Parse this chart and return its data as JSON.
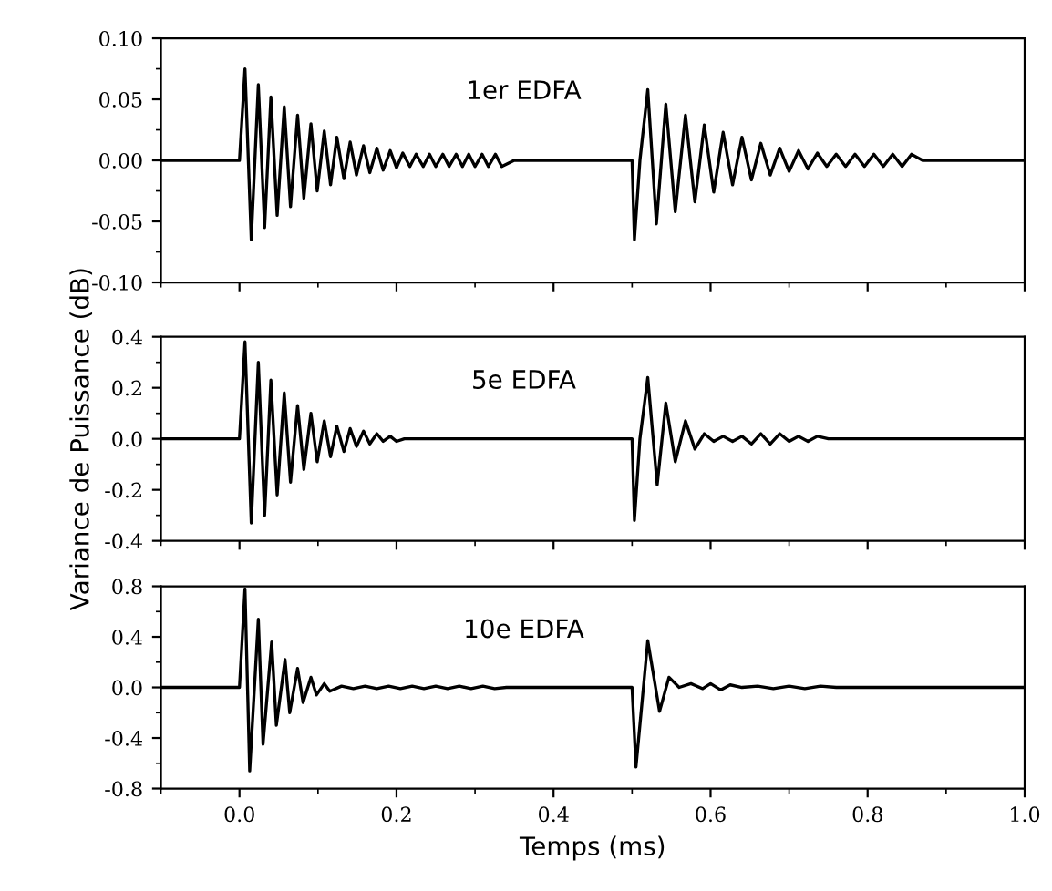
{
  "chart_data": [
    {
      "type": "line",
      "xlim": [
        -0.1,
        1.0
      ],
      "ylim": [
        -0.1,
        0.1
      ],
      "xticks": [
        {
          "value": 0,
          "label": null
        },
        {
          "value": 0.2,
          "label": null
        },
        {
          "value": 0.4,
          "label": null
        },
        {
          "value": 0.6,
          "label": null
        },
        {
          "value": 0.8,
          "label": null
        },
        {
          "value": 1,
          "label": null
        }
      ],
      "yticks": [
        {
          "value": 0.1,
          "label": "0.10"
        },
        {
          "value": 0.05,
          "label": "0.05"
        },
        {
          "value": 0,
          "label": "0.00"
        },
        {
          "value": -0.05,
          "label": "-0.05"
        },
        {
          "value": -0.1,
          "label": "-0.10"
        }
      ],
      "tick_labels": "y",
      "annotations": [
        "1er EDFA"
      ],
      "series": [
        {
          "color": "#000000",
          "x": [
            -0.1,
            0.0,
            0.007,
            0.015,
            0.024,
            0.032,
            0.04,
            0.048,
            0.057,
            0.065,
            0.074,
            0.082,
            0.091,
            0.099,
            0.108,
            0.116,
            0.124,
            0.133,
            0.141,
            0.149,
            0.158,
            0.166,
            0.175,
            0.183,
            0.192,
            0.2,
            0.208,
            0.217,
            0.225,
            0.234,
            0.242,
            0.25,
            0.259,
            0.267,
            0.276,
            0.284,
            0.292,
            0.3,
            0.309,
            0.317,
            0.326,
            0.334,
            0.35,
            0.5,
            0.503,
            0.51,
            0.52,
            0.531,
            0.543,
            0.555,
            0.568,
            0.58,
            0.592,
            0.604,
            0.616,
            0.628,
            0.64,
            0.652,
            0.664,
            0.676,
            0.688,
            0.7,
            0.712,
            0.724,
            0.736,
            0.748,
            0.76,
            0.772,
            0.784,
            0.796,
            0.808,
            0.82,
            0.832,
            0.844,
            0.856,
            0.87,
            0.9,
            0.95,
            1.0
          ],
          "values": [
            0.0,
            0.0,
            0.075,
            -0.065,
            0.062,
            -0.055,
            0.052,
            -0.045,
            0.044,
            -0.038,
            0.037,
            -0.031,
            0.03,
            -0.025,
            0.024,
            -0.02,
            0.019,
            -0.015,
            0.015,
            -0.012,
            0.012,
            -0.01,
            0.01,
            -0.008,
            0.008,
            -0.006,
            0.006,
            -0.005,
            0.005,
            -0.005,
            0.005,
            -0.005,
            0.005,
            -0.005,
            0.005,
            -0.005,
            0.005,
            -0.005,
            0.005,
            -0.005,
            0.005,
            -0.005,
            0.0,
            0.0,
            -0.065,
            0.0,
            0.058,
            -0.052,
            0.046,
            -0.042,
            0.037,
            -0.034,
            0.029,
            -0.026,
            0.023,
            -0.02,
            0.019,
            -0.016,
            0.014,
            -0.012,
            0.01,
            -0.009,
            0.008,
            -0.007,
            0.006,
            -0.005,
            0.005,
            -0.005,
            0.005,
            -0.005,
            0.005,
            -0.005,
            0.005,
            -0.005,
            0.005,
            0.0,
            0.0,
            0.0,
            0.0
          ]
        }
      ]
    },
    {
      "type": "line",
      "xlim": [
        -0.1,
        1.0
      ],
      "ylim": [
        -0.4,
        0.4
      ],
      "xticks": [
        {
          "value": 0,
          "label": null
        },
        {
          "value": 0.2,
          "label": null
        },
        {
          "value": 0.4,
          "label": null
        },
        {
          "value": 0.6,
          "label": null
        },
        {
          "value": 0.8,
          "label": null
        },
        {
          "value": 1,
          "label": null
        }
      ],
      "yticks": [
        0.4,
        0.2,
        {
          "value": 0,
          "label": "0.0"
        },
        -0.2,
        -0.4
      ],
      "tick_labels": "y",
      "ylabel": "Variance de Puissance (dB)",
      "annotations": [
        "5e EDFA"
      ],
      "series": [
        {
          "color": "#000000",
          "x": [
            -0.1,
            0.0,
            0.007,
            0.015,
            0.024,
            0.032,
            0.04,
            0.048,
            0.057,
            0.065,
            0.074,
            0.082,
            0.091,
            0.099,
            0.108,
            0.116,
            0.124,
            0.133,
            0.141,
            0.149,
            0.158,
            0.166,
            0.175,
            0.183,
            0.192,
            0.2,
            0.21,
            0.5,
            0.503,
            0.51,
            0.52,
            0.532,
            0.543,
            0.555,
            0.568,
            0.58,
            0.592,
            0.604,
            0.616,
            0.628,
            0.64,
            0.652,
            0.664,
            0.676,
            0.688,
            0.7,
            0.712,
            0.724,
            0.736,
            0.75,
            0.8,
            1.0
          ],
          "values": [
            0.0,
            0.0,
            0.38,
            -0.33,
            0.3,
            -0.3,
            0.23,
            -0.22,
            0.18,
            -0.17,
            0.13,
            -0.12,
            0.1,
            -0.09,
            0.07,
            -0.07,
            0.05,
            -0.05,
            0.04,
            -0.03,
            0.03,
            -0.02,
            0.02,
            -0.01,
            0.01,
            -0.01,
            0.0,
            0.0,
            -0.32,
            0.0,
            0.24,
            -0.18,
            0.14,
            -0.09,
            0.07,
            -0.04,
            0.02,
            -0.01,
            0.01,
            -0.01,
            0.01,
            -0.02,
            0.02,
            -0.02,
            0.02,
            -0.01,
            0.01,
            -0.01,
            0.01,
            0.0,
            0.0,
            0.0
          ]
        }
      ]
    },
    {
      "type": "line",
      "xlim": [
        -0.1,
        1.0
      ],
      "ylim": [
        -0.8,
        0.8
      ],
      "xticks": [
        {
          "value": 0,
          "label": "0.0"
        },
        0.2,
        0.4,
        0.6,
        0.8,
        {
          "value": 1,
          "label": "1.0"
        }
      ],
      "yticks": [
        0.8,
        0.4,
        {
          "value": 0,
          "label": "0.0"
        },
        -0.4,
        -0.8
      ],
      "xlabel": "Temps (ms)",
      "annotations": [
        "10e EDFA"
      ],
      "series": [
        {
          "color": "#000000",
          "x": [
            -0.1,
            0.0,
            0.007,
            0.013,
            0.024,
            0.03,
            0.041,
            0.047,
            0.058,
            0.064,
            0.074,
            0.081,
            0.091,
            0.098,
            0.108,
            0.115,
            0.13,
            0.145,
            0.16,
            0.175,
            0.19,
            0.205,
            0.22,
            0.235,
            0.25,
            0.265,
            0.28,
            0.295,
            0.31,
            0.325,
            0.34,
            0.5,
            0.505,
            0.52,
            0.535,
            0.547,
            0.56,
            0.575,
            0.59,
            0.6,
            0.613,
            0.625,
            0.64,
            0.66,
            0.68,
            0.7,
            0.72,
            0.74,
            0.76,
            1.0
          ],
          "values": [
            0.0,
            0.0,
            0.78,
            -0.66,
            0.54,
            -0.45,
            0.36,
            -0.3,
            0.22,
            -0.2,
            0.15,
            -0.12,
            0.08,
            -0.06,
            0.03,
            -0.03,
            0.01,
            -0.01,
            0.01,
            -0.01,
            0.01,
            -0.01,
            0.01,
            -0.01,
            0.01,
            -0.01,
            0.01,
            -0.01,
            0.01,
            -0.01,
            0.0,
            0.0,
            -0.63,
            0.37,
            -0.19,
            0.08,
            0.0,
            0.03,
            -0.01,
            0.03,
            -0.02,
            0.02,
            0.0,
            0.01,
            -0.01,
            0.01,
            -0.01,
            0.01,
            0.0,
            0.0
          ]
        }
      ]
    }
  ]
}
